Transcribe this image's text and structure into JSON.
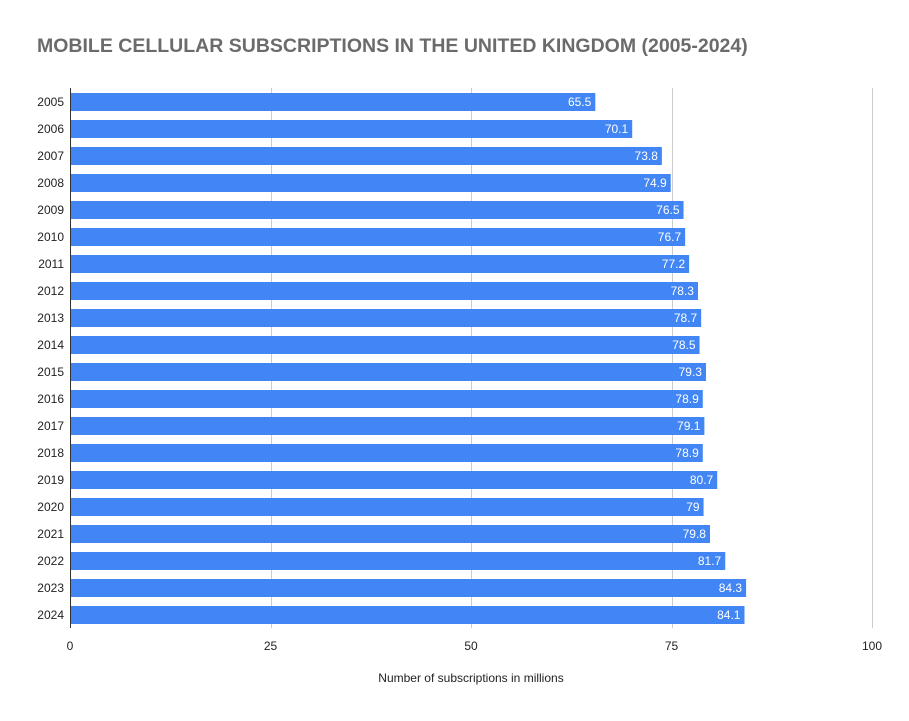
{
  "chart_data": {
    "type": "bar",
    "orientation": "horizontal",
    "title": "MOBILE CELLULAR SUBSCRIPTIONS IN THE UNITED KINGDOM (2005-2024)",
    "xlabel": "Number of subscriptions in millions",
    "ylabel": "",
    "xlim": [
      0,
      100
    ],
    "xticks": [
      "0",
      "25",
      "50",
      "75",
      "100"
    ],
    "grid": true,
    "data_labels": true,
    "bar_color": "#4285f4",
    "categories": [
      "2005",
      "2006",
      "2007",
      "2008",
      "2009",
      "2010",
      "2011",
      "2012",
      "2013",
      "2014",
      "2015",
      "2016",
      "2017",
      "2018",
      "2019",
      "2020",
      "2021",
      "2022",
      "2023",
      "2024"
    ],
    "values": [
      65.5,
      70.1,
      73.8,
      74.9,
      76.5,
      76.7,
      77.2,
      78.3,
      78.7,
      78.5,
      79.3,
      78.9,
      79.1,
      78.9,
      80.7,
      79,
      79.8,
      81.7,
      84.3,
      84.1
    ]
  }
}
